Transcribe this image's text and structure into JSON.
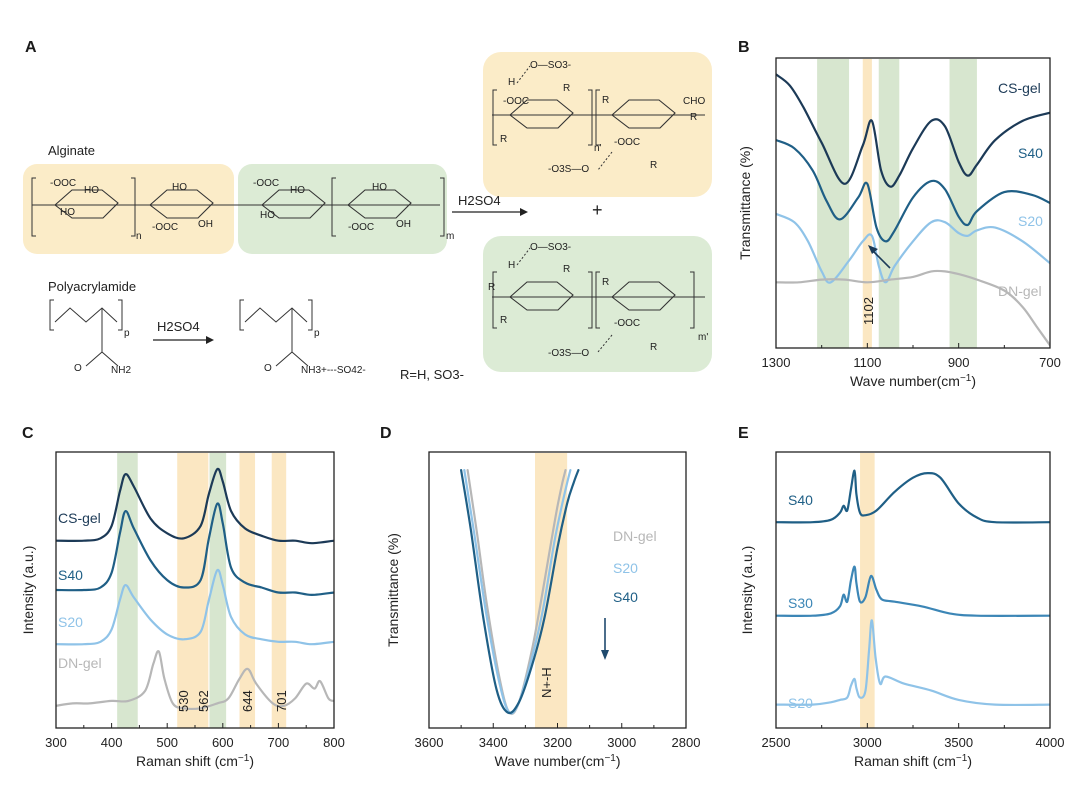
{
  "panels": {
    "a": "A",
    "b": "B",
    "c": "C",
    "d": "D",
    "e": "E"
  },
  "colors": {
    "cs": "#1c3a57",
    "s40": "#1f5f86",
    "s30": "#3c86b6",
    "s20": "#8fc3e8",
    "dn": "#b7b7b7",
    "green_band": "#d7e6cf",
    "orange_band": "#fbe7c2",
    "green_box": "#dcebd5",
    "orange_box": "#fbecc8"
  },
  "scheme": {
    "alginate": "Alginate",
    "polyacrylamide": "Polyacrylamide",
    "h2so4_top": "H2SO4",
    "h2so4_bottom": "H2SO4",
    "plus": "+",
    "r_def": "R=H, SO3-",
    "frag": {
      "cooh": "-OOC",
      "ho": "HO",
      "oh": "OH",
      "o": "O",
      "p": "p",
      "n": "n",
      "m": "m",
      "np": "n'",
      "mp": "m'",
      "nh2": "NH2",
      "nh3": "NH3+---SO42-",
      "r": "R",
      "cho": "CHO",
      "h": "H",
      "so3": "O—SO3-",
      "o3s": "-O3S—O"
    }
  },
  "chart_data": [
    {
      "id": "B",
      "type": "line",
      "xlabel": "Wave number(cm-1)",
      "ylabel": "Transmittance (%)",
      "xlim": [
        1300,
        700
      ],
      "xticks": [
        1300,
        1100,
        900,
        700
      ],
      "bands": [
        {
          "range": [
            1210,
            1140
          ],
          "color": "green"
        },
        {
          "range": [
            1110,
            1090
          ],
          "color": "orange"
        },
        {
          "range": [
            1075,
            1030
          ],
          "color": "green"
        },
        {
          "range": [
            920,
            860
          ],
          "color": "green"
        }
      ],
      "annotation": "1102",
      "series": [
        {
          "name": "CS-gel",
          "color": "cs",
          "x": [
            1300,
            1270,
            1240,
            1200,
            1150,
            1110,
            1090,
            1070,
            1050,
            1030,
            1000,
            960,
            930,
            900,
            880,
            860,
            820,
            760,
            700
          ],
          "y": [
            10.0,
            9.6,
            8.8,
            7.5,
            6.0,
            7.4,
            8.3,
            6.5,
            5.9,
            6.3,
            7.3,
            8.3,
            8.1,
            6.8,
            6.3,
            6.7,
            7.6,
            8.3,
            8.6
          ]
        },
        {
          "name": "S40",
          "color": "s40",
          "x": [
            1300,
            1260,
            1220,
            1190,
            1160,
            1120,
            1100,
            1080,
            1060,
            1040,
            1000,
            960,
            930,
            900,
            880,
            860,
            800,
            740,
            700
          ],
          "y": [
            7.6,
            7.3,
            6.5,
            5.4,
            4.7,
            5.5,
            6.0,
            4.4,
            3.9,
            4.3,
            5.5,
            6.1,
            5.8,
            4.8,
            4.5,
            5.0,
            5.7,
            5.6,
            5.3
          ]
        },
        {
          "name": "S20",
          "color": "s20",
          "x": [
            1300,
            1260,
            1230,
            1200,
            1180,
            1140,
            1110,
            1090,
            1075,
            1060,
            1040,
            1000,
            960,
            930,
            900,
            880,
            860,
            820,
            760,
            700
          ],
          "y": [
            4.9,
            4.6,
            3.9,
            2.8,
            2.4,
            3.2,
            3.9,
            4.1,
            3.0,
            2.4,
            3.0,
            3.9,
            4.6,
            4.6,
            4.2,
            4.1,
            4.3,
            4.4,
            3.9,
            3.1
          ]
        },
        {
          "name": "DN-gel",
          "color": "dn",
          "x": [
            1300,
            1250,
            1200,
            1150,
            1100,
            1050,
            1000,
            960,
            930,
            900,
            860,
            800,
            760,
            730,
            700
          ],
          "y": [
            2.4,
            2.4,
            2.5,
            2.5,
            2.4,
            2.5,
            2.6,
            2.8,
            2.8,
            2.7,
            2.5,
            2.1,
            1.5,
            0.8,
            0.1
          ]
        }
      ]
    },
    {
      "id": "C",
      "type": "line",
      "xlabel": "Raman shift (cm-1)",
      "ylabel": "Intensity (a.u.)",
      "xlim": [
        300,
        800
      ],
      "xticks": [
        300,
        400,
        500,
        600,
        700,
        800
      ],
      "bands": [
        {
          "range": [
            410,
            447
          ],
          "color": "green"
        },
        {
          "range": [
            518,
            574
          ],
          "color": "orange"
        },
        {
          "range": [
            576,
            606
          ],
          "color": "green"
        },
        {
          "range": [
            630,
            658
          ],
          "color": "orange"
        },
        {
          "range": [
            688,
            714
          ],
          "color": "orange"
        }
      ],
      "annotations": [
        "530",
        "562",
        "644",
        "701"
      ],
      "series": [
        {
          "name": "CS-gel",
          "color": "cs",
          "x": [
            300,
            350,
            380,
            400,
            415,
            425,
            440,
            470,
            500,
            530,
            560,
            575,
            590,
            600,
            615,
            640,
            670,
            700,
            730,
            760,
            800
          ],
          "y": [
            7.6,
            7.6,
            7.7,
            8.2,
            9.6,
            10.3,
            9.8,
            8.5,
            7.9,
            7.7,
            8.2,
            9.5,
            10.5,
            10.0,
            8.8,
            8.1,
            7.8,
            7.6,
            7.6,
            7.5,
            7.6
          ]
        },
        {
          "name": "S40",
          "color": "s40",
          "x": [
            300,
            350,
            380,
            400,
            415,
            425,
            440,
            470,
            500,
            530,
            560,
            575,
            590,
            600,
            615,
            640,
            670,
            700,
            730,
            760,
            800
          ],
          "y": [
            5.6,
            5.6,
            5.7,
            6.3,
            7.9,
            8.8,
            8.1,
            6.8,
            6.0,
            5.7,
            6.0,
            7.7,
            9.1,
            8.3,
            6.5,
            5.9,
            5.7,
            5.5,
            5.5,
            5.4,
            5.5
          ]
        },
        {
          "name": "S20",
          "color": "s20",
          "x": [
            300,
            350,
            380,
            400,
            415,
            425,
            440,
            470,
            500,
            530,
            560,
            575,
            590,
            600,
            615,
            640,
            670,
            700,
            730,
            760,
            800
          ],
          "y": [
            3.4,
            3.4,
            3.5,
            4.0,
            5.2,
            5.8,
            5.3,
            4.4,
            3.8,
            3.6,
            3.9,
            5.2,
            6.4,
            5.8,
            4.5,
            3.8,
            3.6,
            3.5,
            3.5,
            3.4,
            3.5
          ]
        },
        {
          "name": "DN-gel",
          "color": "dn",
          "x": [
            300,
            330,
            360,
            400,
            430,
            460,
            475,
            485,
            495,
            510,
            530,
            560,
            590,
            610,
            630,
            645,
            660,
            690,
            710,
            730,
            750,
            765,
            775,
            790,
            800
          ],
          "y": [
            0.9,
            1.0,
            1.0,
            1.1,
            1.1,
            1.5,
            2.6,
            3.1,
            2.0,
            1.0,
            0.8,
            0.8,
            1.0,
            1.2,
            2.0,
            2.4,
            1.8,
            1.0,
            0.9,
            1.2,
            1.8,
            1.6,
            1.9,
            1.2,
            1.1
          ]
        }
      ]
    },
    {
      "id": "D",
      "type": "line",
      "xlabel": "Wave number(cm-1)",
      "ylabel": "Transmittance (%)",
      "xlim": [
        3600,
        2800
      ],
      "xticks": [
        3600,
        3400,
        3200,
        3000,
        2800
      ],
      "bands": [
        {
          "range": [
            3270,
            3170
          ],
          "color": "orange"
        }
      ],
      "annotation": "N+-H",
      "series": [
        {
          "name": "DN-gel",
          "color": "dn",
          "x": [
            3480,
            3450,
            3420,
            3380,
            3350,
            3320,
            3280,
            3250,
            3220,
            3200,
            3185,
            3175
          ],
          "y": [
            10.0,
            7.5,
            4.8,
            1.9,
            0.6,
            1.0,
            3.0,
            5.0,
            7.2,
            8.6,
            9.5,
            10.0
          ]
        },
        {
          "name": "S20",
          "color": "s20",
          "x": [
            3490,
            3460,
            3420,
            3380,
            3350,
            3320,
            3280,
            3245,
            3210,
            3185,
            3170,
            3160
          ],
          "y": [
            10.0,
            7.6,
            4.3,
            1.7,
            0.6,
            1.0,
            2.7,
            4.6,
            7.2,
            8.7,
            9.5,
            10.0
          ]
        },
        {
          "name": "S40",
          "color": "s40",
          "x": [
            3500,
            3470,
            3430,
            3390,
            3355,
            3320,
            3280,
            3240,
            3200,
            3170,
            3150,
            3135
          ],
          "y": [
            10.0,
            7.7,
            4.2,
            1.5,
            0.6,
            1.0,
            2.4,
            4.3,
            7.0,
            8.7,
            9.5,
            10.0
          ]
        }
      ]
    },
    {
      "id": "E",
      "type": "line",
      "xlabel": "Raman shift (cm-1)",
      "ylabel": "Intensity (a.u.)",
      "xlim": [
        2500,
        4000
      ],
      "xticks": [
        2500,
        3000,
        3500,
        4000
      ],
      "bands": [
        {
          "range": [
            2960,
            3040
          ],
          "color": "orange"
        }
      ],
      "series": [
        {
          "name": "S40",
          "color": "s40",
          "x": [
            2500,
            2700,
            2800,
            2850,
            2870,
            2890,
            2910,
            2930,
            2940,
            2960,
            2990,
            3050,
            3150,
            3250,
            3330,
            3400,
            3500,
            3600,
            3700,
            4000
          ],
          "y": [
            8.2,
            8.2,
            8.3,
            8.6,
            8.9,
            8.7,
            9.6,
            10.4,
            9.4,
            8.6,
            8.5,
            8.7,
            9.5,
            10.1,
            10.3,
            10.1,
            9.0,
            8.4,
            8.2,
            8.2
          ]
        },
        {
          "name": "S30",
          "color": "s30",
          "x": [
            2500,
            2700,
            2800,
            2850,
            2870,
            2890,
            2910,
            2930,
            2940,
            2960,
            2990,
            3020,
            3050,
            3080,
            3150,
            3300,
            3450,
            3600,
            4000
          ],
          "y": [
            4.2,
            4.2,
            4.3,
            4.6,
            5.1,
            4.8,
            5.7,
            6.3,
            5.6,
            4.8,
            5.0,
            5.9,
            5.3,
            4.9,
            4.8,
            4.6,
            4.3,
            4.2,
            4.2
          ]
        },
        {
          "name": "S20",
          "color": "s20",
          "x": [
            2500,
            2700,
            2800,
            2850,
            2890,
            2910,
            2930,
            2940,
            2960,
            2990,
            3010,
            3025,
            3045,
            3070,
            3100,
            3200,
            3350,
            3500,
            3700,
            4000
          ],
          "y": [
            0.4,
            0.4,
            0.5,
            0.6,
            0.7,
            1.2,
            1.5,
            1.1,
            0.7,
            1.0,
            2.8,
            4.0,
            2.4,
            1.3,
            1.6,
            1.3,
            1.0,
            0.6,
            0.4,
            0.4
          ]
        }
      ]
    }
  ]
}
